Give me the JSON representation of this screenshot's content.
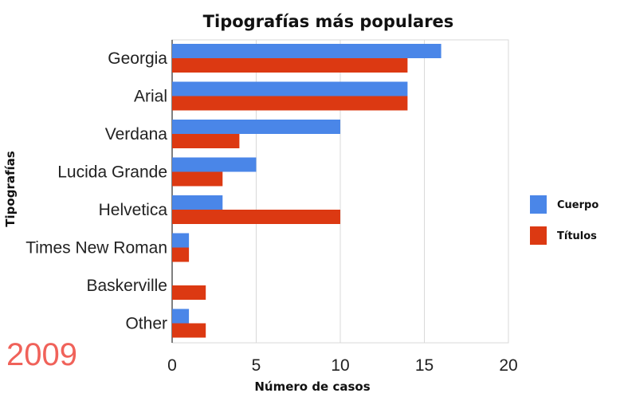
{
  "chart_data": {
    "type": "bar",
    "orientation": "horizontal",
    "title": "Tipografías más populares",
    "xlabel": "Número de casos",
    "ylabel": "Tipografías",
    "categories": [
      "Georgia",
      "Arial",
      "Verdana",
      "Lucida Grande",
      "Helvetica",
      "Times New Roman",
      "Baskerville",
      "Other"
    ],
    "series": [
      {
        "name": "Cuerpo",
        "color": "#4a86e8",
        "values": [
          16,
          14,
          10,
          5,
          3,
          1,
          0,
          1
        ]
      },
      {
        "name": "Títulos",
        "color": "#dc3912",
        "values": [
          14,
          14,
          4,
          3,
          10,
          1,
          2,
          2
        ]
      }
    ],
    "xlim": [
      0,
      20
    ],
    "xticks": [
      "0",
      "5",
      "10",
      "15",
      "20"
    ],
    "grid": true,
    "legend": "right"
  },
  "annotation": "2009"
}
